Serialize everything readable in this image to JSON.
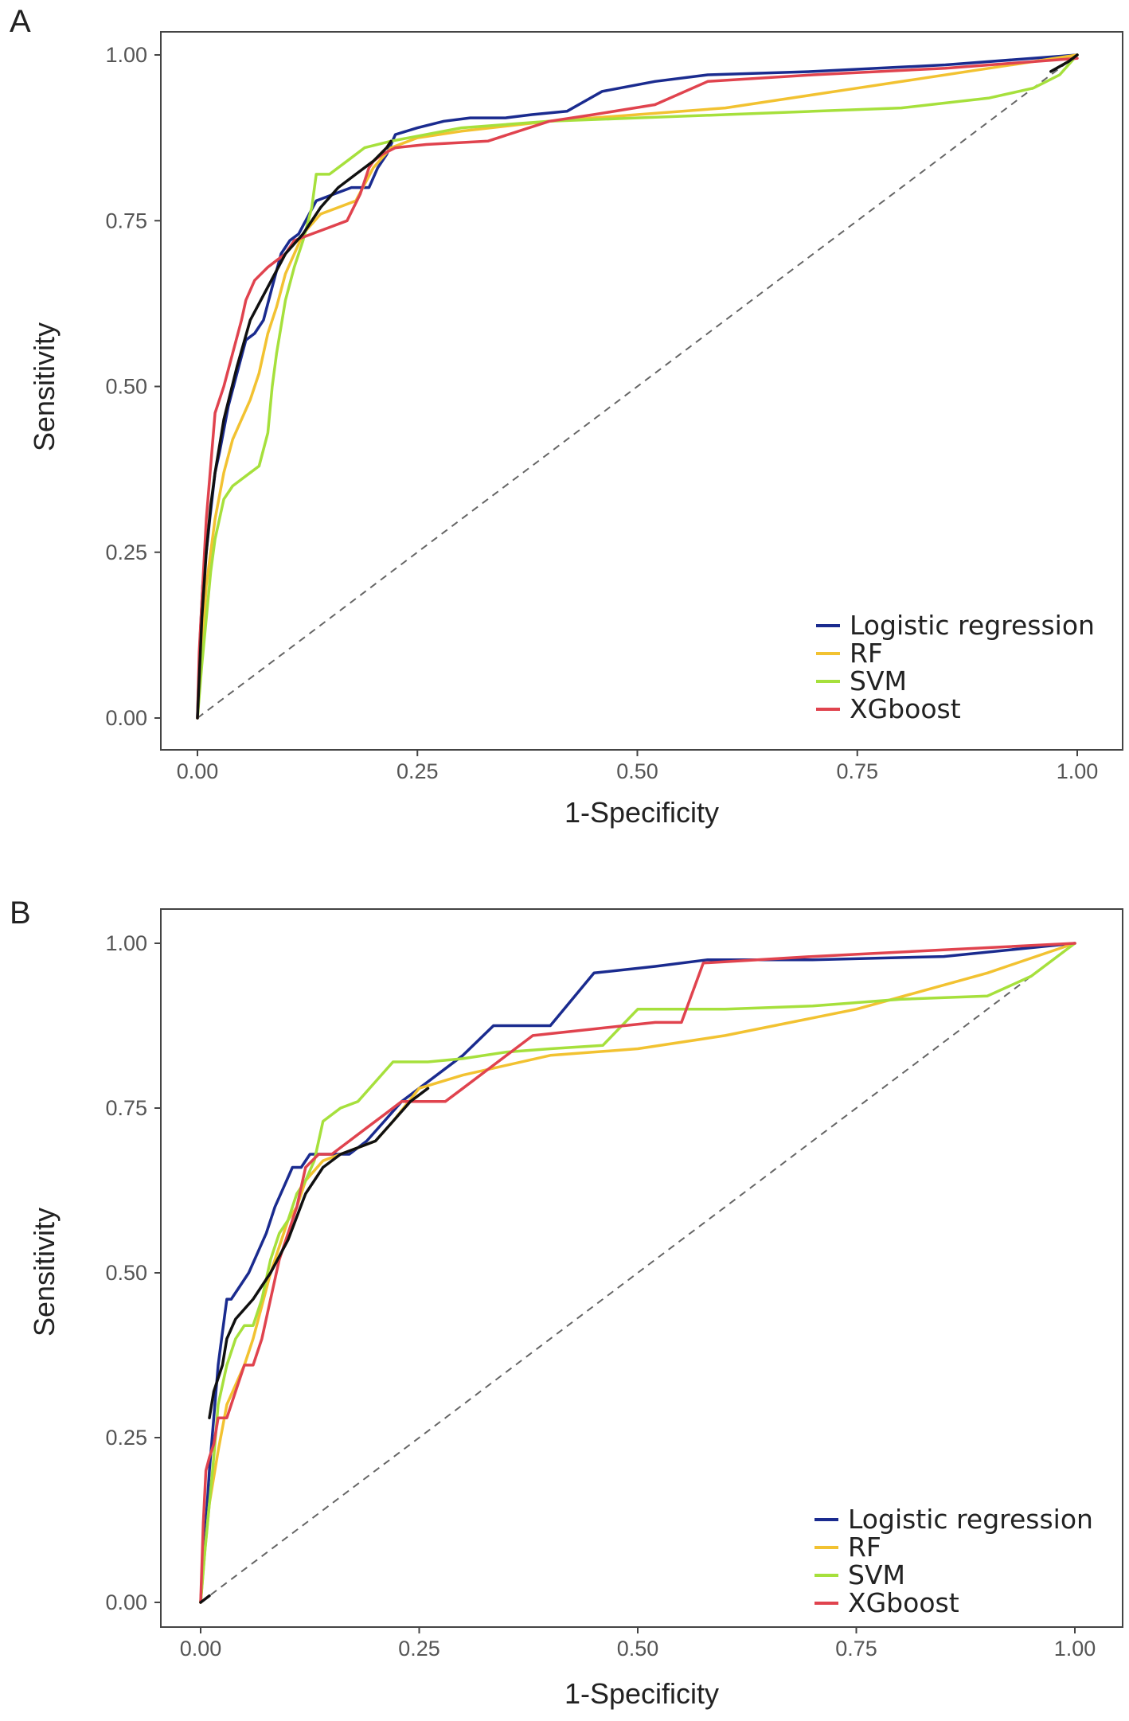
{
  "chart_data": [
    {
      "type": "line",
      "panel_label": "A",
      "xlabel": "1-Specificity",
      "ylabel": "Sensitivity",
      "xlim": [
        0,
        1
      ],
      "ylim": [
        0,
        1
      ],
      "xticks": [
        "0.00",
        "0.25",
        "0.50",
        "0.75",
        "1.00"
      ],
      "yticks": [
        "0.00",
        "0.25",
        "0.50",
        "0.75",
        "1.00"
      ],
      "legend_position": "bottom-right",
      "reference_line": {
        "x": [
          0,
          1
        ],
        "y": [
          0,
          1
        ],
        "style": "dashed"
      },
      "series": [
        {
          "name": "Logistic regression",
          "color": "#1a2b8f",
          "x": [
            0,
            0.003,
            0.006,
            0.01,
            0.014,
            0.02,
            0.025,
            0.035,
            0.045,
            0.055,
            0.065,
            0.075,
            0.085,
            0.095,
            0.105,
            0.115,
            0.135,
            0.155,
            0.175,
            0.195,
            0.205,
            0.215,
            0.225,
            0.25,
            0.28,
            0.31,
            0.35,
            0.38,
            0.42,
            0.46,
            0.52,
            0.58,
            0.7,
            0.85,
            1.0
          ],
          "y": [
            0,
            0.12,
            0.2,
            0.25,
            0.3,
            0.37,
            0.4,
            0.47,
            0.52,
            0.57,
            0.58,
            0.6,
            0.65,
            0.7,
            0.72,
            0.73,
            0.78,
            0.79,
            0.8,
            0.8,
            0.83,
            0.85,
            0.88,
            0.89,
            0.9,
            0.905,
            0.905,
            0.91,
            0.915,
            0.945,
            0.96,
            0.97,
            0.975,
            0.985,
            1.0
          ]
        },
        {
          "name": "RF",
          "color": "#f2c231",
          "x": [
            0,
            0.005,
            0.01,
            0.02,
            0.03,
            0.04,
            0.05,
            0.06,
            0.07,
            0.08,
            0.09,
            0.1,
            0.11,
            0.12,
            0.14,
            0.16,
            0.18,
            0.2,
            0.22,
            0.25,
            0.3,
            0.4,
            0.5,
            0.6,
            0.75,
            0.9,
            1.0
          ],
          "y": [
            0,
            0.1,
            0.2,
            0.3,
            0.37,
            0.42,
            0.45,
            0.48,
            0.52,
            0.58,
            0.62,
            0.67,
            0.7,
            0.73,
            0.76,
            0.77,
            0.78,
            0.83,
            0.86,
            0.875,
            0.885,
            0.9,
            0.91,
            0.92,
            0.95,
            0.98,
            1.0
          ]
        },
        {
          "name": "SVM",
          "color": "#a6e03c",
          "x": [
            0,
            0.005,
            0.01,
            0.015,
            0.02,
            0.025,
            0.03,
            0.04,
            0.05,
            0.06,
            0.07,
            0.08,
            0.085,
            0.09,
            0.1,
            0.11,
            0.12,
            0.13,
            0.135,
            0.15,
            0.17,
            0.19,
            0.22,
            0.3,
            0.4,
            0.5,
            0.6,
            0.7,
            0.8,
            0.9,
            0.95,
            0.98,
            1.0
          ],
          "y": [
            0,
            0.08,
            0.15,
            0.22,
            0.27,
            0.3,
            0.33,
            0.35,
            0.36,
            0.37,
            0.38,
            0.43,
            0.5,
            0.55,
            0.63,
            0.68,
            0.72,
            0.77,
            0.82,
            0.82,
            0.84,
            0.86,
            0.87,
            0.89,
            0.9,
            0.905,
            0.91,
            0.915,
            0.92,
            0.935,
            0.95,
            0.97,
            1.0
          ]
        },
        {
          "name": "XGboost",
          "color": "#e0434e",
          "x": [
            0,
            0.002,
            0.006,
            0.01,
            0.015,
            0.02,
            0.03,
            0.04,
            0.05,
            0.055,
            0.065,
            0.08,
            0.09,
            0.1,
            0.11,
            0.13,
            0.15,
            0.17,
            0.185,
            0.195,
            0.2,
            0.21,
            0.225,
            0.26,
            0.33,
            0.4,
            0.45,
            0.52,
            0.58,
            0.7,
            0.85,
            1.0
          ],
          "y": [
            0,
            0.1,
            0.2,
            0.3,
            0.38,
            0.46,
            0.5,
            0.55,
            0.6,
            0.63,
            0.66,
            0.68,
            0.69,
            0.7,
            0.72,
            0.73,
            0.74,
            0.75,
            0.79,
            0.83,
            0.84,
            0.85,
            0.86,
            0.865,
            0.87,
            0.9,
            0.91,
            0.925,
            0.96,
            0.97,
            0.98,
            0.995
          ]
        },
        {
          "name": "",
          "color": "#101010",
          "legend": false,
          "x": [
            0,
            0.005,
            0.01,
            0.015,
            0.02,
            0.03,
            0.045,
            0.06,
            0.08,
            0.1,
            0.12,
            0.14,
            0.16,
            0.18,
            0.2,
            0.215,
            0.22
          ],
          "y": [
            0,
            0.15,
            0.25,
            0.32,
            0.37,
            0.45,
            0.53,
            0.6,
            0.65,
            0.7,
            0.73,
            0.77,
            0.8,
            0.82,
            0.84,
            0.86,
            0.87
          ]
        },
        {
          "name": "",
          "color": "#101010",
          "legend": false,
          "x": [
            0.97,
            0.99,
            1.0
          ],
          "y": [
            0.975,
            0.99,
            1.0
          ]
        }
      ]
    },
    {
      "type": "line",
      "panel_label": "B",
      "xlabel": "1-Specificity",
      "ylabel": "Sensitivity",
      "xlim": [
        0,
        1
      ],
      "ylim": [
        0,
        1
      ],
      "xticks": [
        "0.00",
        "0.25",
        "0.50",
        "0.75",
        "1.00"
      ],
      "yticks": [
        "0.00",
        "0.25",
        "0.50",
        "0.75",
        "1.00"
      ],
      "legend_position": "bottom-right",
      "reference_line": {
        "x": [
          0,
          1
        ],
        "y": [
          0,
          1
        ],
        "style": "dashed"
      },
      "series": [
        {
          "name": "Logistic regression",
          "color": "#1a2b8f",
          "x": [
            0,
            0.005,
            0.01,
            0.015,
            0.02,
            0.025,
            0.03,
            0.035,
            0.045,
            0.055,
            0.065,
            0.075,
            0.085,
            0.095,
            0.105,
            0.115,
            0.125,
            0.14,
            0.155,
            0.17,
            0.19,
            0.21,
            0.23,
            0.25,
            0.3,
            0.335,
            0.4,
            0.45,
            0.52,
            0.58,
            0.7,
            0.85,
            1.0
          ],
          "y": [
            0,
            0.1,
            0.2,
            0.28,
            0.36,
            0.41,
            0.46,
            0.46,
            0.48,
            0.5,
            0.53,
            0.56,
            0.6,
            0.63,
            0.66,
            0.66,
            0.68,
            0.68,
            0.68,
            0.68,
            0.7,
            0.73,
            0.76,
            0.78,
            0.83,
            0.875,
            0.875,
            0.955,
            0.965,
            0.975,
            0.975,
            0.98,
            1.0
          ]
        },
        {
          "name": "RF",
          "color": "#f2c231",
          "x": [
            0,
            0.005,
            0.01,
            0.02,
            0.03,
            0.04,
            0.05,
            0.06,
            0.07,
            0.08,
            0.09,
            0.1,
            0.11,
            0.12,
            0.14,
            0.16,
            0.18,
            0.2,
            0.22,
            0.25,
            0.3,
            0.4,
            0.5,
            0.6,
            0.75,
            0.9,
            1.0
          ],
          "y": [
            0,
            0.08,
            0.15,
            0.23,
            0.3,
            0.33,
            0.36,
            0.4,
            0.45,
            0.5,
            0.54,
            0.58,
            0.6,
            0.64,
            0.67,
            0.68,
            0.69,
            0.7,
            0.73,
            0.78,
            0.8,
            0.83,
            0.84,
            0.86,
            0.9,
            0.955,
            1.0
          ]
        },
        {
          "name": "SVM",
          "color": "#a6e03c",
          "x": [
            0,
            0.005,
            0.01,
            0.015,
            0.02,
            0.03,
            0.04,
            0.05,
            0.06,
            0.07,
            0.08,
            0.09,
            0.1,
            0.11,
            0.12,
            0.13,
            0.14,
            0.16,
            0.18,
            0.2,
            0.22,
            0.26,
            0.3,
            0.35,
            0.4,
            0.46,
            0.5,
            0.6,
            0.7,
            0.8,
            0.9,
            0.95,
            1.0
          ],
          "y": [
            0,
            0.08,
            0.15,
            0.22,
            0.3,
            0.36,
            0.4,
            0.42,
            0.42,
            0.46,
            0.52,
            0.56,
            0.58,
            0.62,
            0.64,
            0.67,
            0.73,
            0.75,
            0.76,
            0.79,
            0.82,
            0.82,
            0.825,
            0.835,
            0.84,
            0.845,
            0.9,
            0.9,
            0.905,
            0.915,
            0.92,
            0.95,
            1.0
          ]
        },
        {
          "name": "XGboost",
          "color": "#e0434e",
          "x": [
            0,
            0.003,
            0.006,
            0.01,
            0.015,
            0.02,
            0.03,
            0.04,
            0.05,
            0.06,
            0.07,
            0.08,
            0.09,
            0.1,
            0.11,
            0.12,
            0.135,
            0.15,
            0.17,
            0.19,
            0.21,
            0.23,
            0.25,
            0.28,
            0.3,
            0.34,
            0.38,
            0.45,
            0.52,
            0.55,
            0.575,
            0.7,
            0.85,
            1.0
          ],
          "y": [
            0,
            0.12,
            0.2,
            0.22,
            0.24,
            0.28,
            0.28,
            0.32,
            0.36,
            0.36,
            0.4,
            0.46,
            0.52,
            0.56,
            0.6,
            0.66,
            0.68,
            0.68,
            0.7,
            0.72,
            0.74,
            0.76,
            0.76,
            0.76,
            0.78,
            0.82,
            0.86,
            0.87,
            0.88,
            0.88,
            0.97,
            0.98,
            0.99,
            1.0
          ]
        },
        {
          "name": "",
          "color": "#101010",
          "legend": false,
          "x": [
            0.01,
            0.015,
            0.025,
            0.03,
            0.04,
            0.06,
            0.08,
            0.1,
            0.12,
            0.14,
            0.16,
            0.18,
            0.2,
            0.22,
            0.24,
            0.26
          ],
          "y": [
            0.28,
            0.32,
            0.36,
            0.4,
            0.43,
            0.46,
            0.5,
            0.55,
            0.62,
            0.66,
            0.68,
            0.69,
            0.7,
            0.73,
            0.76,
            0.78
          ]
        },
        {
          "name": "",
          "color": "#101010",
          "legend": false,
          "x": [
            0,
            0.005,
            0.01
          ],
          "y": [
            0,
            0.005,
            0.01
          ]
        }
      ]
    }
  ]
}
